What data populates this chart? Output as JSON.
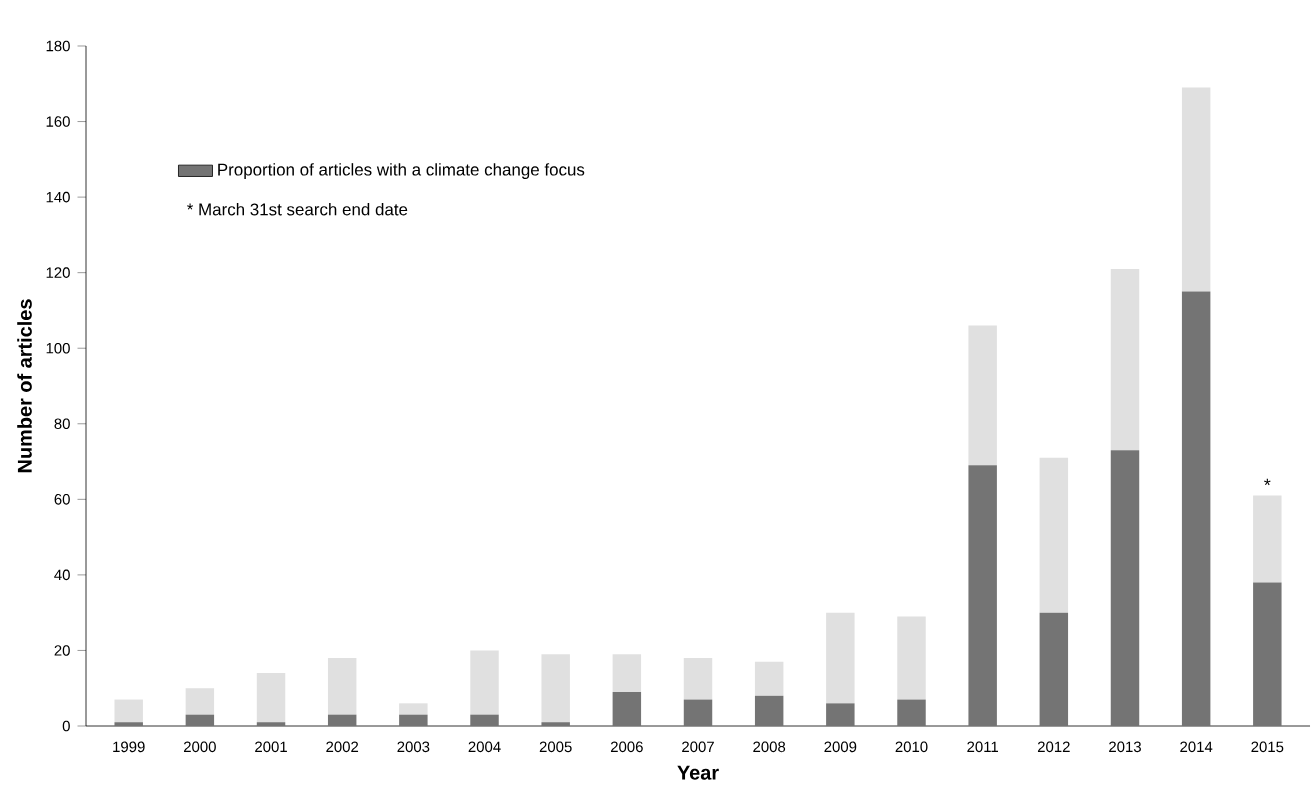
{
  "chart_data": {
    "type": "bar",
    "stacked": true,
    "xlabel": "Year",
    "ylabel": "Number of articles",
    "categories": [
      "1999",
      "2000",
      "2001",
      "2002",
      "2003",
      "2004",
      "2005",
      "2006",
      "2007",
      "2008",
      "2009",
      "2010",
      "2011",
      "2012",
      "2013",
      "2014",
      "2015"
    ],
    "series": [
      {
        "name": "Proportion of articles with a climate change focus",
        "color": "#747474",
        "values": [
          1,
          3,
          1,
          3,
          3,
          3,
          1,
          9,
          7,
          8,
          6,
          7,
          69,
          30,
          73,
          115,
          38
        ]
      },
      {
        "color": "#e0e0e0",
        "values": [
          6,
          7,
          13,
          15,
          3,
          17,
          18,
          10,
          11,
          9,
          24,
          22,
          37,
          41,
          48,
          54,
          23
        ]
      }
    ],
    "ylim": [
      0,
      180
    ],
    "yticks": [
      0,
      20,
      40,
      60,
      80,
      100,
      120,
      140,
      160,
      180
    ],
    "legend": "top left",
    "annotations": [
      "* March 31st search end date",
      {
        "text": "*",
        "x": "2015",
        "y": 61
      }
    ]
  }
}
